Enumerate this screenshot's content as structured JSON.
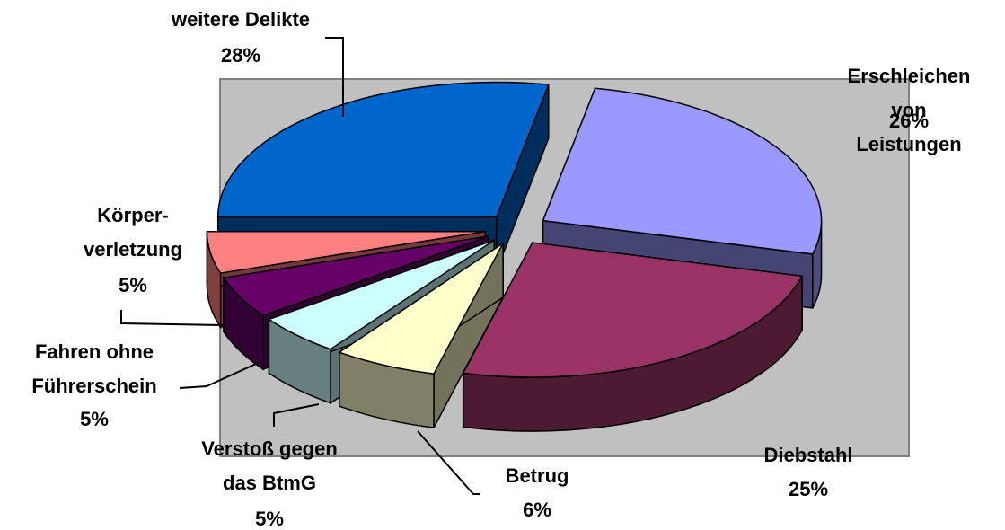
{
  "chart_data": {
    "type": "pie",
    "categories": [
      "weitere Delikte",
      "Erschleichen\nvon Leistungen",
      "Diebstahl",
      "Betrug",
      "Verstoß gegen\ndas BtmG",
      "Fahren ohne\nFührerschein",
      "Körper-\nverletzung"
    ],
    "values": [
      28,
      26,
      25,
      6,
      5,
      5,
      5
    ],
    "value_labels": [
      "28%",
      "26%",
      "25%",
      "6%",
      "5%",
      "5%",
      "5%"
    ],
    "colors": [
      "#0066cc",
      "#9999ff",
      "#993366",
      "#ffffcc",
      "#ccffff",
      "#660066",
      "#ff8080"
    ]
  }
}
